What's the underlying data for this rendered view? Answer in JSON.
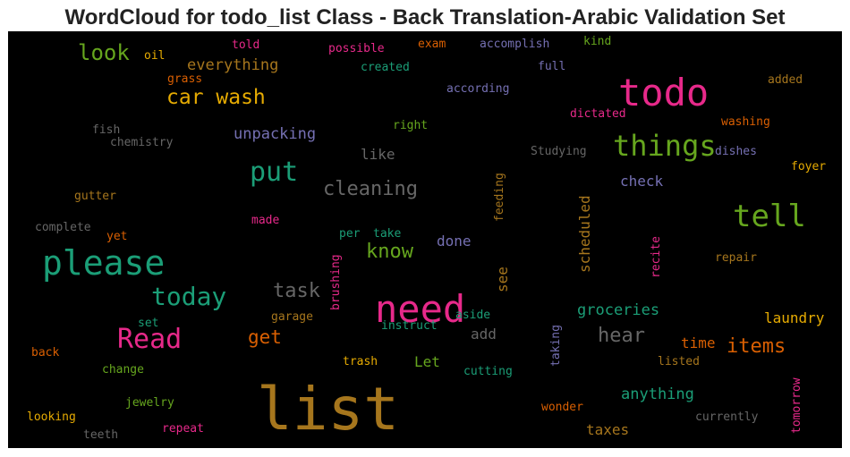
{
  "chart_data": {
    "type": "wordcloud",
    "title": "WordCloud for todo_list Class - Back Translation-Arabic Validation Set",
    "background": "#000000",
    "palette": [
      "#1b9e77",
      "#d95f02",
      "#7570b3",
      "#e7298a",
      "#66a61e",
      "#e6ab02",
      "#a6761d",
      "#666666"
    ],
    "words": [
      {
        "text": "list",
        "color": "#a6761d"
      },
      {
        "text": "need",
        "color": "#e7298a"
      },
      {
        "text": "todo",
        "color": "#e7298a"
      },
      {
        "text": "please",
        "color": "#1b9e77"
      },
      {
        "text": "tell",
        "color": "#66a61e"
      },
      {
        "text": "things",
        "color": "#66a61e"
      },
      {
        "text": "Read",
        "color": "#e7298a"
      },
      {
        "text": "put",
        "color": "#1b9e77"
      },
      {
        "text": "today",
        "color": "#1b9e77"
      },
      {
        "text": "car wash",
        "color": "#e6ab02"
      },
      {
        "text": "cleaning",
        "color": "#666666"
      },
      {
        "text": "task",
        "color": "#666666"
      },
      {
        "text": "look",
        "color": "#66a61e"
      },
      {
        "text": "know",
        "color": "#66a61e"
      },
      {
        "text": "hear",
        "color": "#666666"
      },
      {
        "text": "items",
        "color": "#d95f02"
      },
      {
        "text": "get",
        "color": "#d95f02"
      },
      {
        "text": "everything",
        "color": "#a6761d"
      },
      {
        "text": "unpacking",
        "color": "#7570b3"
      },
      {
        "text": "groceries",
        "color": "#1b9e77"
      },
      {
        "text": "anything",
        "color": "#1b9e77"
      },
      {
        "text": "scheduled",
        "color": "#a6761d"
      },
      {
        "text": "laundry",
        "color": "#e6ab02"
      },
      {
        "text": "taxes",
        "color": "#a6761d"
      },
      {
        "text": "like",
        "color": "#666666"
      },
      {
        "text": "check",
        "color": "#7570b3"
      },
      {
        "text": "done",
        "color": "#7570b3"
      },
      {
        "text": "time",
        "color": "#d95f02"
      },
      {
        "text": "add",
        "color": "#666666"
      },
      {
        "text": "see",
        "color": "#a6761d"
      },
      {
        "text": "Let",
        "color": "#66a61e"
      },
      {
        "text": "told",
        "color": "#e7298a"
      },
      {
        "text": "possible",
        "color": "#e7298a"
      },
      {
        "text": "exam",
        "color": "#d95f02"
      },
      {
        "text": "accomplish",
        "color": "#7570b3"
      },
      {
        "text": "kind",
        "color": "#66a61e"
      },
      {
        "text": "oil",
        "color": "#e6ab02"
      },
      {
        "text": "created",
        "color": "#1b9e77"
      },
      {
        "text": "full",
        "color": "#7570b3"
      },
      {
        "text": "grass",
        "color": "#d95f02"
      },
      {
        "text": "according",
        "color": "#7570b3"
      },
      {
        "text": "added",
        "color": "#a6761d"
      },
      {
        "text": "dictated",
        "color": "#e7298a"
      },
      {
        "text": "washing",
        "color": "#d95f02"
      },
      {
        "text": "right",
        "color": "#66a61e"
      },
      {
        "text": "fish",
        "color": "#666666"
      },
      {
        "text": "chemistry",
        "color": "#666666"
      },
      {
        "text": "Studying",
        "color": "#666666"
      },
      {
        "text": "dishes",
        "color": "#7570b3"
      },
      {
        "text": "foyer",
        "color": "#e6ab02"
      },
      {
        "text": "gutter",
        "color": "#a6761d"
      },
      {
        "text": "feeding",
        "color": "#a6761d"
      },
      {
        "text": "made",
        "color": "#e7298a"
      },
      {
        "text": "complete",
        "color": "#666666"
      },
      {
        "text": "yet",
        "color": "#d95f02"
      },
      {
        "text": "per",
        "color": "#1b9e77"
      },
      {
        "text": "take",
        "color": "#1b9e77"
      },
      {
        "text": "recite",
        "color": "#e7298a"
      },
      {
        "text": "repair",
        "color": "#a6761d"
      },
      {
        "text": "brushing",
        "color": "#e7298a"
      },
      {
        "text": "aside",
        "color": "#1b9e77"
      },
      {
        "text": "set",
        "color": "#1b9e77"
      },
      {
        "text": "garage",
        "color": "#a6761d"
      },
      {
        "text": "instruct",
        "color": "#1b9e77"
      },
      {
        "text": "taking",
        "color": "#7570b3"
      },
      {
        "text": "back",
        "color": "#d95f02"
      },
      {
        "text": "change",
        "color": "#66a61e"
      },
      {
        "text": "trash",
        "color": "#e6ab02"
      },
      {
        "text": "cutting",
        "color": "#1b9e77"
      },
      {
        "text": "listed",
        "color": "#a6761d"
      },
      {
        "text": "tomorrow",
        "color": "#e7298a"
      },
      {
        "text": "jewelry",
        "color": "#66a61e"
      },
      {
        "text": "wonder",
        "color": "#d95f02"
      },
      {
        "text": "looking",
        "color": "#e6ab02"
      },
      {
        "text": "repeat",
        "color": "#e7298a"
      },
      {
        "text": "currently",
        "color": "#666666"
      },
      {
        "text": "teeth",
        "color": "#666666"
      }
    ]
  }
}
